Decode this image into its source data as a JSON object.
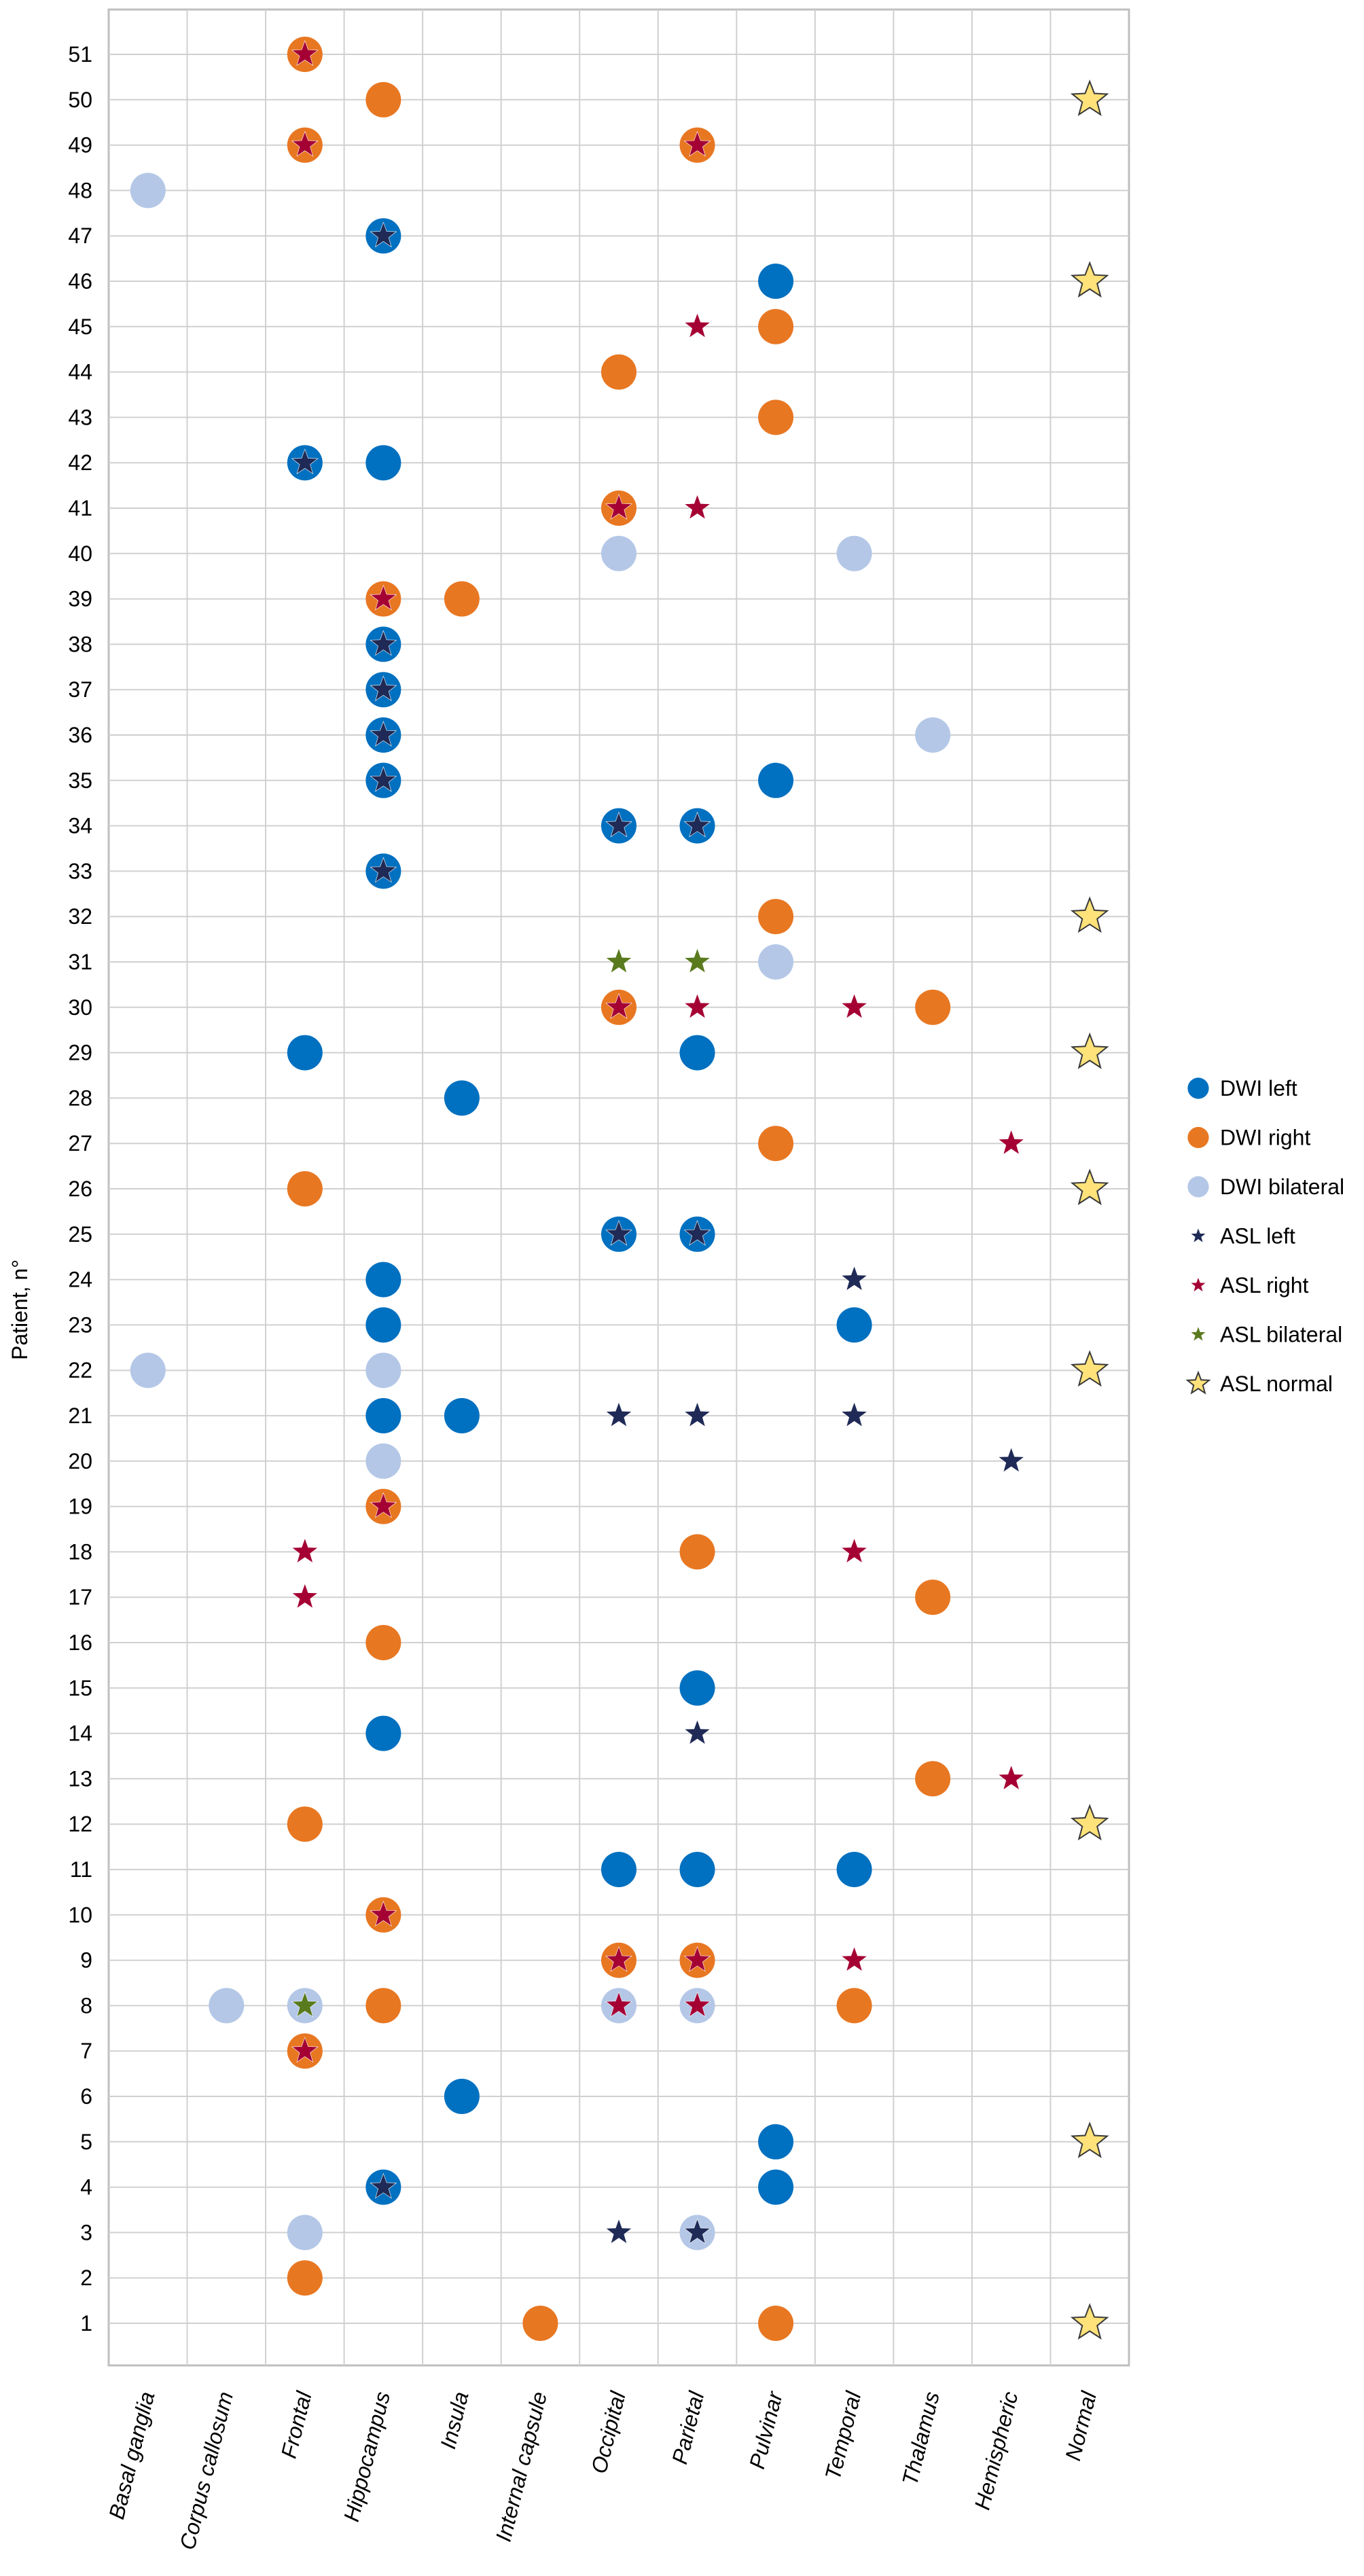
{
  "chart_data": {
    "type": "scatter",
    "title": "",
    "xlabel": "",
    "ylabel": "Patient, n°",
    "categories": [
      "Basal ganglia",
      "Corpus callosum",
      "Frontal",
      "Hippocampus",
      "Insula",
      "Internal capsule",
      "Occipital",
      "Parietal",
      "Pulvinar",
      "Temporal",
      "Thalamus",
      "Hemispheric",
      "Normal"
    ],
    "ylim": [
      1,
      51
    ],
    "grid": true,
    "legend_position": "right",
    "series": [
      {
        "name": "DWI left",
        "marker": "circle",
        "color": "#0070C0",
        "points": [
          [
            "Frontal",
            29
          ],
          [
            "Frontal",
            42
          ],
          [
            "Hippocampus",
            4
          ],
          [
            "Hippocampus",
            14
          ],
          [
            "Hippocampus",
            21
          ],
          [
            "Hippocampus",
            23
          ],
          [
            "Hippocampus",
            24
          ],
          [
            "Hippocampus",
            33
          ],
          [
            "Hippocampus",
            35
          ],
          [
            "Hippocampus",
            36
          ],
          [
            "Hippocampus",
            37
          ],
          [
            "Hippocampus",
            38
          ],
          [
            "Hippocampus",
            42
          ],
          [
            "Hippocampus",
            47
          ],
          [
            "Insula",
            6
          ],
          [
            "Insula",
            21
          ],
          [
            "Insula",
            28
          ],
          [
            "Occipital",
            11
          ],
          [
            "Occipital",
            25
          ],
          [
            "Occipital",
            34
          ],
          [
            "Parietal",
            11
          ],
          [
            "Parietal",
            15
          ],
          [
            "Parietal",
            25
          ],
          [
            "Parietal",
            29
          ],
          [
            "Parietal",
            34
          ],
          [
            "Pulvinar",
            4
          ],
          [
            "Pulvinar",
            5
          ],
          [
            "Pulvinar",
            35
          ],
          [
            "Pulvinar",
            46
          ],
          [
            "Temporal",
            11
          ],
          [
            "Temporal",
            23
          ]
        ]
      },
      {
        "name": "DWI right",
        "marker": "circle",
        "color": "#E87722",
        "points": [
          [
            "Frontal",
            2
          ],
          [
            "Frontal",
            7
          ],
          [
            "Frontal",
            12
          ],
          [
            "Frontal",
            26
          ],
          [
            "Frontal",
            49
          ],
          [
            "Frontal",
            51
          ],
          [
            "Hippocampus",
            8
          ],
          [
            "Hippocampus",
            10
          ],
          [
            "Hippocampus",
            16
          ],
          [
            "Hippocampus",
            19
          ],
          [
            "Hippocampus",
            39
          ],
          [
            "Hippocampus",
            50
          ],
          [
            "Insula",
            39
          ],
          [
            "Internal capsule",
            1
          ],
          [
            "Occipital",
            9
          ],
          [
            "Occipital",
            30
          ],
          [
            "Occipital",
            41
          ],
          [
            "Occipital",
            44
          ],
          [
            "Parietal",
            9
          ],
          [
            "Parietal",
            18
          ],
          [
            "Parietal",
            49
          ],
          [
            "Pulvinar",
            1
          ],
          [
            "Pulvinar",
            27
          ],
          [
            "Pulvinar",
            32
          ],
          [
            "Pulvinar",
            43
          ],
          [
            "Pulvinar",
            45
          ],
          [
            "Temporal",
            8
          ],
          [
            "Thalamus",
            13
          ],
          [
            "Thalamus",
            17
          ],
          [
            "Thalamus",
            30
          ]
        ]
      },
      {
        "name": "DWI bilateral",
        "marker": "circle",
        "color": "#B4C7E7",
        "points": [
          [
            "Basal ganglia",
            22
          ],
          [
            "Basal ganglia",
            48
          ],
          [
            "Corpus callosum",
            8
          ],
          [
            "Frontal",
            3
          ],
          [
            "Frontal",
            8
          ],
          [
            "Hippocampus",
            20
          ],
          [
            "Hippocampus",
            22
          ],
          [
            "Occipital",
            8
          ],
          [
            "Occipital",
            40
          ],
          [
            "Parietal",
            3
          ],
          [
            "Parietal",
            8
          ],
          [
            "Pulvinar",
            31
          ],
          [
            "Temporal",
            40
          ],
          [
            "Thalamus",
            36
          ]
        ]
      },
      {
        "name": "ASL left",
        "marker": "star",
        "color": "#1F2A56",
        "points": [
          [
            "Frontal",
            42
          ],
          [
            "Hippocampus",
            4
          ],
          [
            "Hippocampus",
            33
          ],
          [
            "Hippocampus",
            35
          ],
          [
            "Hippocampus",
            36
          ],
          [
            "Hippocampus",
            37
          ],
          [
            "Hippocampus",
            38
          ],
          [
            "Hippocampus",
            47
          ],
          [
            "Occipital",
            3
          ],
          [
            "Occipital",
            21
          ],
          [
            "Occipital",
            25
          ],
          [
            "Occipital",
            34
          ],
          [
            "Parietal",
            3
          ],
          [
            "Parietal",
            14
          ],
          [
            "Parietal",
            21
          ],
          [
            "Parietal",
            25
          ],
          [
            "Parietal",
            34
          ],
          [
            "Temporal",
            21
          ],
          [
            "Temporal",
            24
          ],
          [
            "Hemispheric",
            20
          ]
        ]
      },
      {
        "name": "ASL right",
        "marker": "star",
        "color": "#A50034",
        "points": [
          [
            "Frontal",
            7
          ],
          [
            "Frontal",
            17
          ],
          [
            "Frontal",
            18
          ],
          [
            "Frontal",
            49
          ],
          [
            "Frontal",
            51
          ],
          [
            "Hippocampus",
            10
          ],
          [
            "Hippocampus",
            19
          ],
          [
            "Hippocampus",
            39
          ],
          [
            "Occipital",
            8
          ],
          [
            "Occipital",
            9
          ],
          [
            "Occipital",
            30
          ],
          [
            "Occipital",
            41
          ],
          [
            "Parietal",
            8
          ],
          [
            "Parietal",
            9
          ],
          [
            "Parietal",
            30
          ],
          [
            "Parietal",
            41
          ],
          [
            "Parietal",
            45
          ],
          [
            "Parietal",
            49
          ],
          [
            "Temporal",
            9
          ],
          [
            "Temporal",
            18
          ],
          [
            "Temporal",
            30
          ],
          [
            "Hemispheric",
            13
          ],
          [
            "Hemispheric",
            27
          ]
        ]
      },
      {
        "name": "ASL bilateral",
        "marker": "star",
        "color": "#5A7A1E",
        "points": [
          [
            "Frontal",
            8
          ],
          [
            "Occipital",
            31
          ],
          [
            "Parietal",
            31
          ]
        ]
      },
      {
        "name": "ASL normal",
        "marker": "star-outline",
        "color": "#FFE27A",
        "points": [
          [
            "Normal",
            1
          ],
          [
            "Normal",
            5
          ],
          [
            "Normal",
            12
          ],
          [
            "Normal",
            22
          ],
          [
            "Normal",
            26
          ],
          [
            "Normal",
            29
          ],
          [
            "Normal",
            32
          ],
          [
            "Normal",
            46
          ],
          [
            "Normal",
            50
          ]
        ]
      }
    ]
  }
}
